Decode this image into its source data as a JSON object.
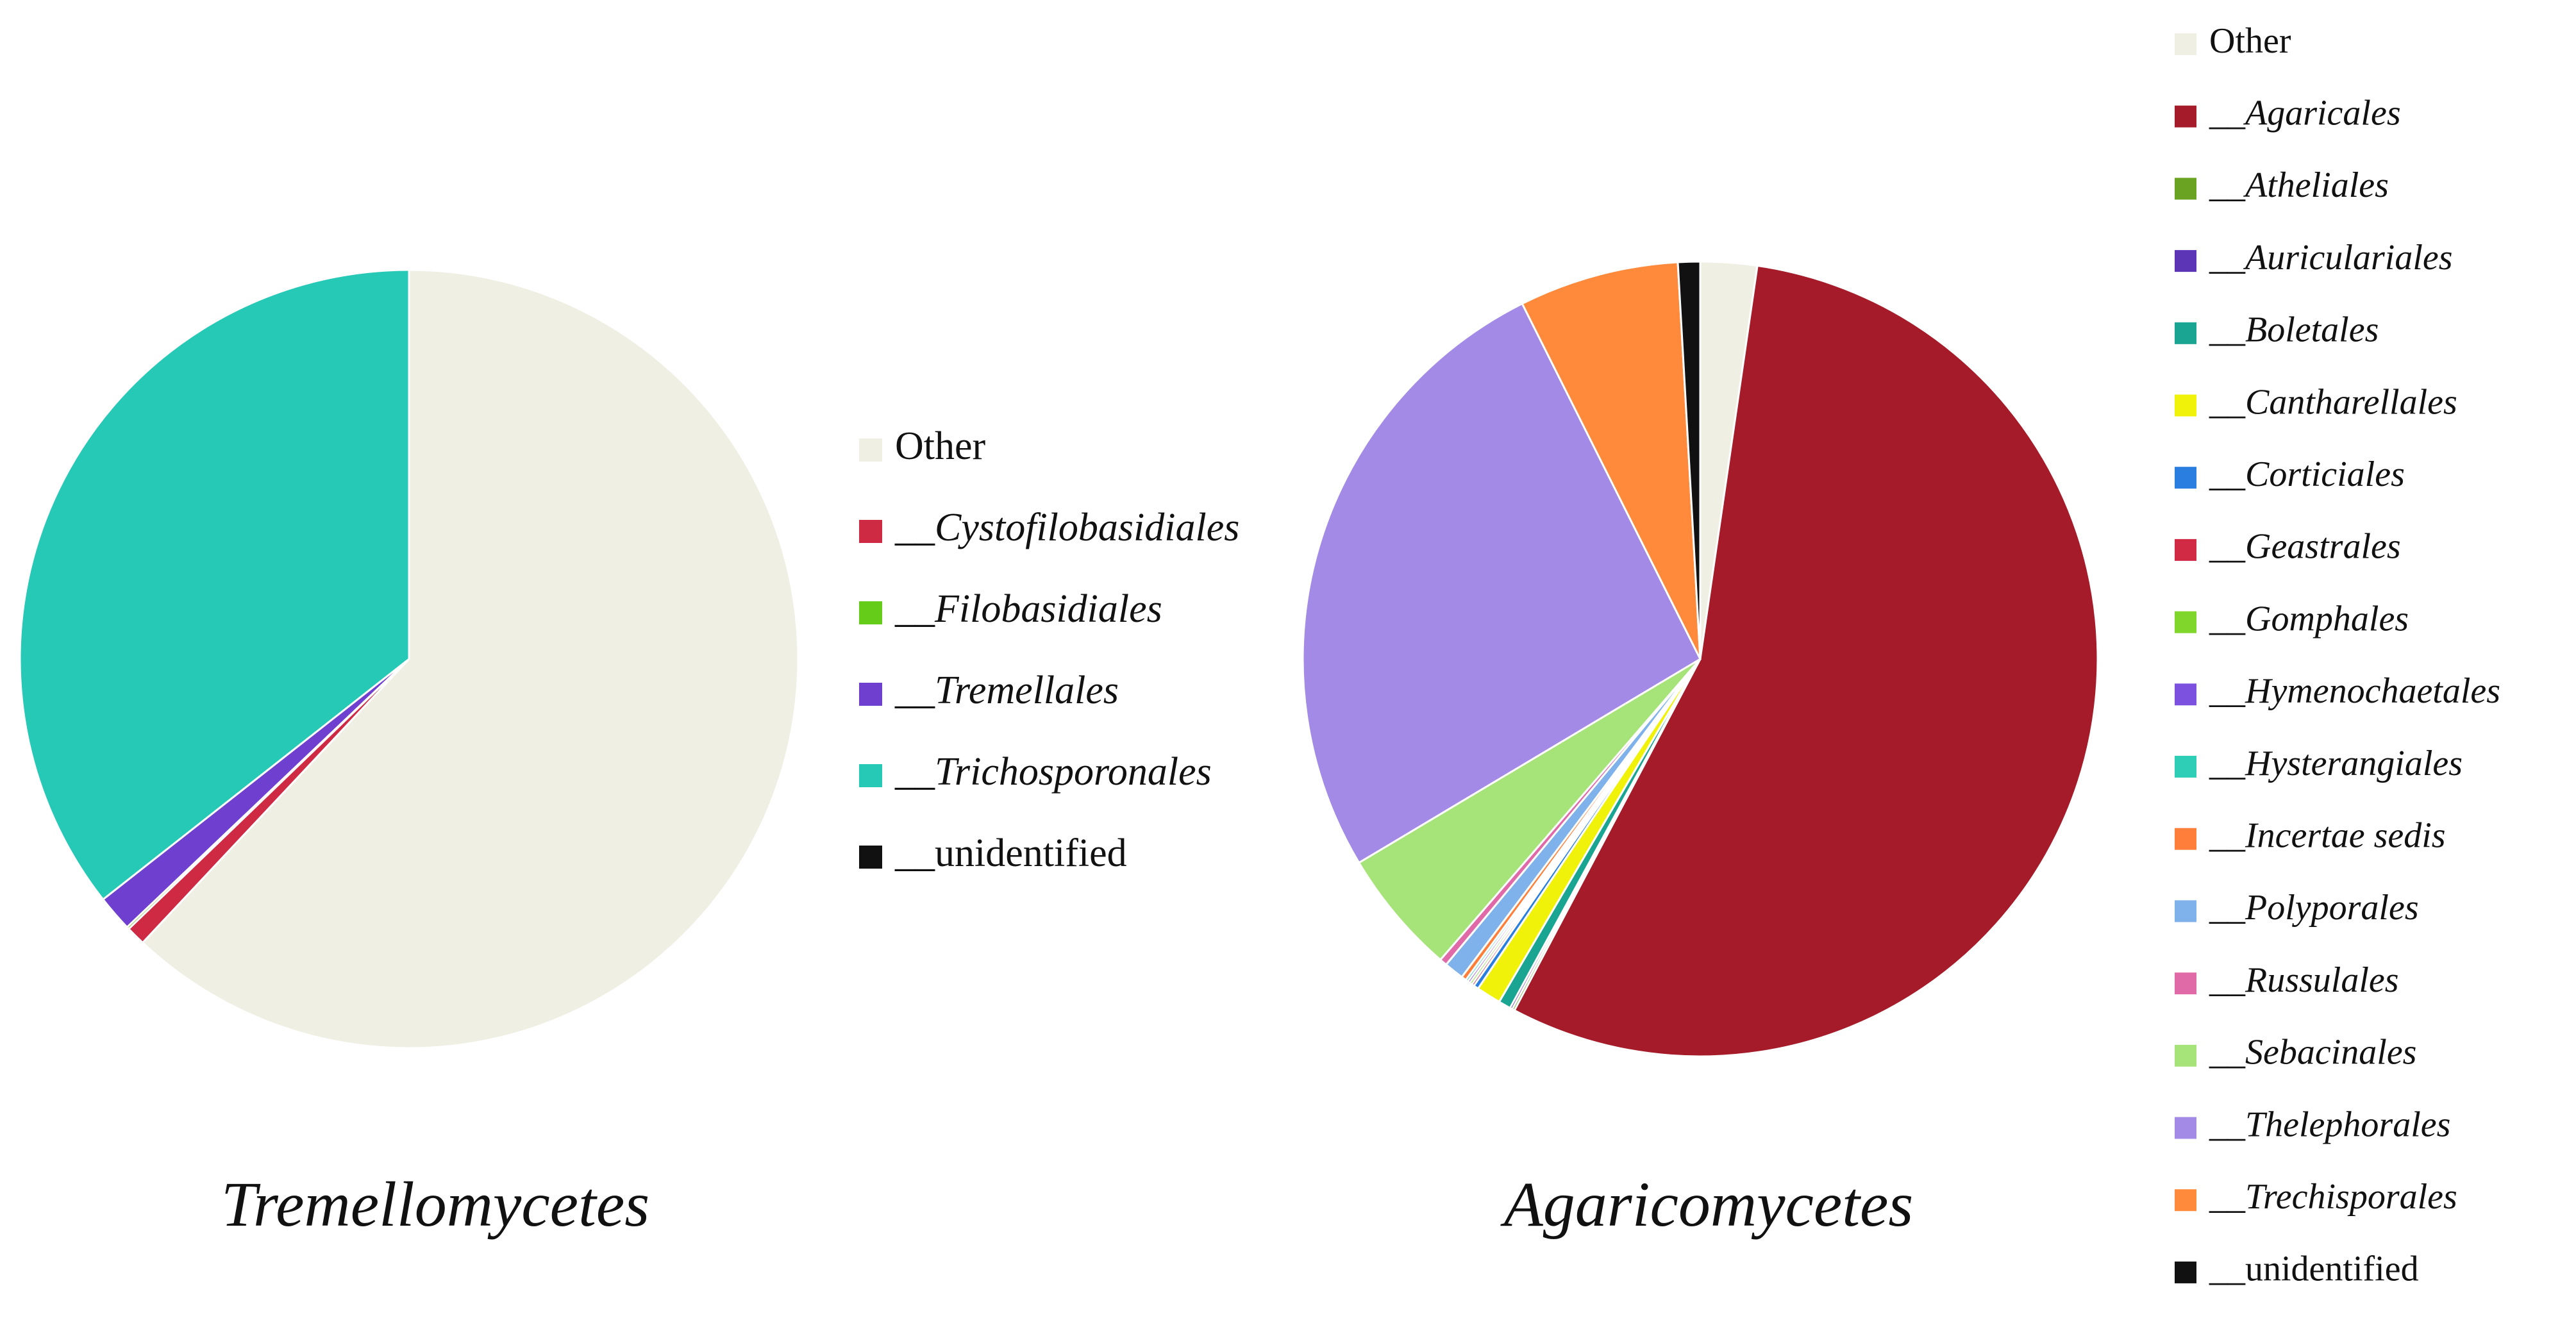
{
  "chart_data": [
    {
      "type": "pie",
      "title": "Tremellomycetes",
      "categories": [
        "Other",
        "__Cystofilobasidiales",
        "__Filobasidiales",
        "__Tremellales",
        "__Trichosporonales",
        "__unidentified"
      ],
      "values": [
        62,
        0.8,
        0.1,
        1.5,
        35.6,
        0
      ],
      "colors": [
        "#efefe3",
        "#cf2a44",
        "#66cc1a",
        "#6f3fd0",
        "#26c9b6",
        "#111111"
      ],
      "italic": [
        false,
        true,
        true,
        true,
        true,
        false
      ]
    },
    {
      "type": "pie",
      "title": "Agaricomycetes",
      "categories": [
        "Other",
        "__Agaricales",
        "__Atheliales",
        "__Auriculariales",
        "__Boletales",
        "__Cantharellales",
        "__Corticiales",
        "__Geastrales",
        "__Gomphales",
        "__Hymenochaetales",
        "__Hysterangiales",
        "__Incertae sedis",
        "__Polyporales",
        "__Russulales",
        "__Sebacinales",
        "__Thelephorales",
        "__Trechisporales",
        "__unidentified"
      ],
      "values": [
        2.3,
        55.5,
        0.1,
        0.1,
        0.5,
        1.0,
        0.2,
        0.1,
        0.1,
        0.1,
        0.1,
        0.2,
        0.8,
        0.3,
        5.1,
        26.2,
        6.5,
        0.9
      ],
      "colors": [
        "#efefe3",
        "#a51b29",
        "#6aa321",
        "#5b35b5",
        "#1aa593",
        "#f1f20a",
        "#2a7ee0",
        "#d12a45",
        "#80d62a",
        "#7c51e0",
        "#2ecdb5",
        "#ff7f3a",
        "#7fb2ea",
        "#e06aa8",
        "#a6e378",
        "#a28ae6",
        "#ff8a3c",
        "#111111"
      ],
      "italic": [
        false,
        true,
        true,
        true,
        true,
        true,
        true,
        true,
        true,
        true,
        true,
        true,
        true,
        true,
        true,
        true,
        true,
        false
      ]
    }
  ]
}
